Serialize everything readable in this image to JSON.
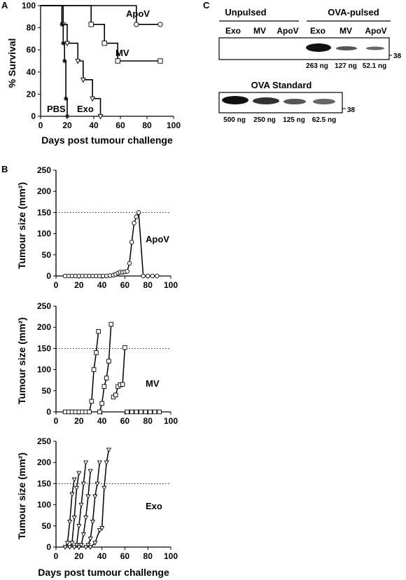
{
  "panels": {
    "a": "A",
    "b": "B",
    "c": "C"
  },
  "survival": {
    "chart_data": {
      "type": "line",
      "subtype": "kaplan-meier",
      "ylabel": "% Survival",
      "xlabel": "Days post tumour challenge",
      "xlim": [
        0,
        100
      ],
      "ylim": [
        0,
        100
      ],
      "xticks": [
        0,
        20,
        40,
        60,
        80,
        100
      ],
      "yticks": [
        0,
        20,
        40,
        60,
        80,
        100
      ],
      "series": [
        {
          "name": "ApoV",
          "marker": "circle",
          "x": [
            0,
            72,
            90
          ],
          "y": [
            100,
            83,
            83
          ]
        },
        {
          "name": "MV",
          "marker": "square",
          "x": [
            0,
            38,
            48,
            58,
            90
          ],
          "y": [
            100,
            83,
            66,
            50,
            50
          ]
        },
        {
          "name": "Exo",
          "marker": "triangle",
          "x": [
            0,
            17,
            20,
            28,
            32,
            39,
            45
          ],
          "y": [
            100,
            83,
            66,
            50,
            33,
            16,
            0
          ]
        },
        {
          "name": "PBS",
          "marker": "star",
          "x": [
            0,
            16,
            17,
            18,
            19,
            20
          ],
          "y": [
            100,
            83,
            66,
            50,
            16,
            0
          ]
        }
      ]
    }
  },
  "tumour": {
    "ylabel": "Tumour size (mm²)",
    "xlabel": "Days post tumour challenge",
    "threshold": 150,
    "xticks": [
      0,
      20,
      40,
      60,
      80,
      100
    ],
    "yticks": [
      0,
      50,
      100,
      150,
      200,
      250
    ],
    "charts": [
      {
        "label": "ApoV",
        "marker": "circle",
        "xlim": [
          0,
          100
        ],
        "ylim": [
          0,
          250
        ],
        "series": [
          {
            "x": [
              8,
              11,
              14,
              17,
              20,
              23,
              26,
              29,
              32,
              35,
              38,
              41,
              44,
              47,
              50,
              52,
              54,
              56,
              58,
              60,
              62,
              64,
              66,
              68,
              70,
              72,
              76,
              80,
              84,
              88
            ],
            "y": [
              0,
              0,
              0,
              0,
              0,
              0,
              0,
              0,
              0,
              0,
              0,
              0,
              0,
              1,
              2,
              4,
              7,
              9,
              9,
              10,
              11,
              30,
              80,
              125,
              140,
              150,
              0,
              0,
              0,
              0
            ]
          }
        ]
      },
      {
        "label": "MV",
        "marker": "square",
        "xlim": [
          0,
          100
        ],
        "ylim": [
          0,
          250
        ],
        "series": [
          {
            "x": [
              8,
              11,
              14,
              17,
              20,
              23,
              26,
              29,
              31,
              33,
              35,
              37
            ],
            "y": [
              0,
              0,
              0,
              0,
              0,
              0,
              0,
              0,
              25,
              100,
              140,
              190
            ]
          },
          {
            "x": [
              38,
              40,
              42,
              44,
              46,
              48
            ],
            "y": [
              0,
              20,
              60,
              80,
              120,
              207
            ]
          },
          {
            "x": [
              50,
              52,
              54,
              56,
              58,
              60
            ],
            "y": [
              35,
              40,
              60,
              64,
              65,
              152
            ]
          },
          {
            "x": [
              62,
              66,
              70,
              74,
              78,
              82,
              86,
              90
            ],
            "y": [
              0,
              0,
              0,
              0,
              0,
              0,
              0,
              0
            ]
          }
        ]
      },
      {
        "label": "Exo",
        "marker": "triangle",
        "xlim": [
          0,
          100
        ],
        "ylim": [
          0,
          250
        ],
        "series": [
          {
            "x": [
              8,
              10,
              12,
              14,
              16
            ],
            "y": [
              0,
              10,
              60,
              125,
              160
            ]
          },
          {
            "x": [
              12,
              14,
              16,
              18,
              20
            ],
            "y": [
              0,
              10,
              70,
              140,
              175
            ]
          },
          {
            "x": [
              16,
              18,
              20,
              22,
              24,
              26
            ],
            "y": [
              0,
              5,
              50,
              100,
              150,
              200
            ]
          },
          {
            "x": [
              20,
              22,
              24,
              26,
              28,
              30
            ],
            "y": [
              0,
              5,
              30,
              70,
              120,
              180
            ]
          },
          {
            "x": [
              26,
              28,
              30,
              32,
              34,
              36,
              38
            ],
            "y": [
              0,
              5,
              20,
              60,
              120,
              150,
              200
            ]
          },
          {
            "x": [
              30,
              34,
              38,
              40,
              42,
              44,
              46
            ],
            "y": [
              0,
              10,
              40,
              45,
              140,
              200,
              230
            ]
          }
        ]
      }
    ]
  },
  "blot": {
    "group_unpulsed": "Unpulsed",
    "group_pulsed": "OVA-pulsed",
    "lanes": [
      "Exo",
      "MV",
      "ApoV",
      "Exo",
      "MV",
      "ApoV"
    ],
    "amounts": [
      "263 ng",
      "127 ng",
      "52.1 ng"
    ],
    "marker_kda": "38",
    "standard_title": "OVA Standard",
    "standard_amounts": [
      "500 ng",
      "250 ng",
      "125 ng",
      "62.5 ng"
    ]
  }
}
